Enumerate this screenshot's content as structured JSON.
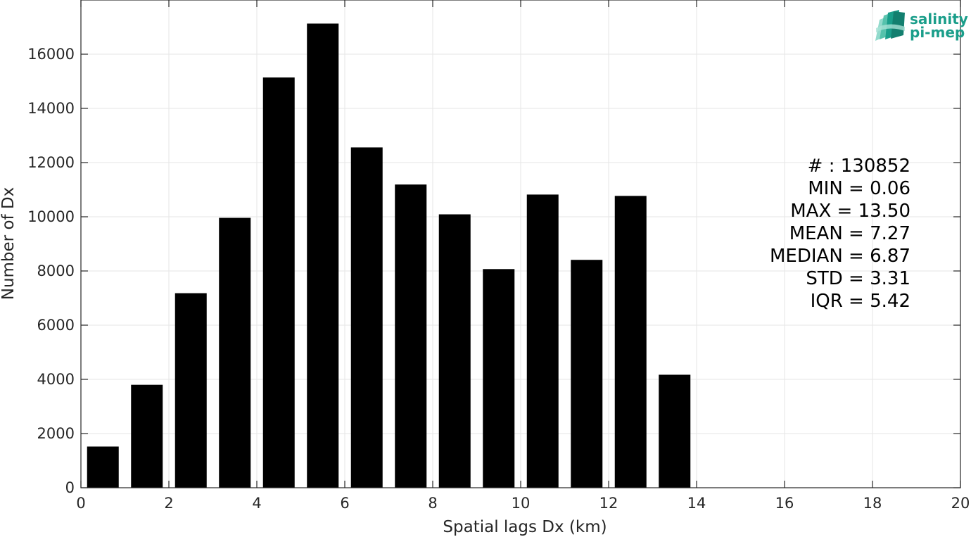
{
  "chart_data": {
    "type": "bar",
    "x": [
      0.5,
      1.5,
      2.5,
      3.5,
      4.5,
      5.5,
      6.5,
      7.5,
      8.5,
      9.5,
      10.5,
      11.5,
      12.5,
      13.5,
      14.5,
      15.5,
      16.5,
      17.5,
      18.5,
      19.5
    ],
    "values": [
      1520,
      3800,
      7180,
      9960,
      15140,
      17130,
      12560,
      11190,
      10090,
      8070,
      10820,
      8410,
      10770,
      4170,
      0,
      0,
      0,
      0,
      0,
      0
    ],
    "bar_color": "#000000",
    "xlabel": "Spatial lags Dx (km)",
    "ylabel": "Number of Dx",
    "xlim": [
      0,
      20
    ],
    "ylim": [
      0,
      18000
    ],
    "xticks": [
      0,
      2,
      4,
      6,
      8,
      10,
      12,
      14,
      16,
      18,
      20
    ],
    "yticks": [
      0,
      2000,
      4000,
      6000,
      8000,
      10000,
      12000,
      14000,
      16000
    ],
    "grid": true,
    "annotations": [
      "# : 130852",
      "MIN = 0.06",
      "MAX =  13.50",
      "MEAN = 7.27",
      "MEDIAN = 6.87",
      "STD = 3.31",
      "IQR = 5.42"
    ]
  },
  "logo": {
    "line1": "salinity",
    "line2": "pi-mep",
    "color": "#1a9e8a"
  }
}
